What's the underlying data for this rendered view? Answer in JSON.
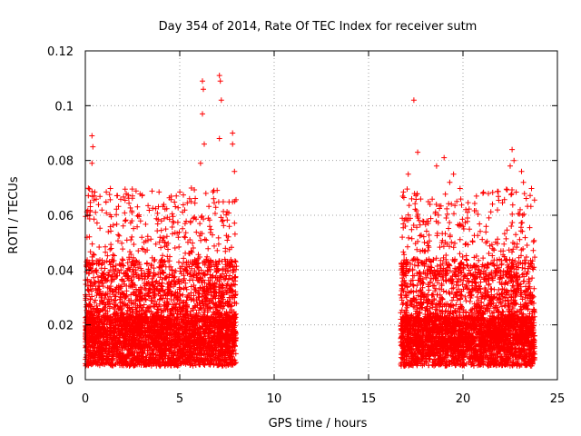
{
  "chart_data": {
    "type": "scatter",
    "title": "Day 354 of 2014, Rate Of TEC Index for receiver sutm",
    "xlabel": "GPS time / hours",
    "ylabel": "ROTI / TECUs",
    "xlim": [
      0,
      25
    ],
    "ylim": [
      0,
      0.12
    ],
    "xticks": [
      0,
      5,
      10,
      15,
      20,
      25
    ],
    "xtick_labels": [
      "0",
      "5",
      "10",
      "15",
      "20",
      "25"
    ],
    "yticks": [
      0,
      0.02,
      0.04,
      0.06,
      0.08,
      0.1,
      0.12
    ],
    "ytick_labels": [
      "0",
      "0.02",
      "0.04",
      "0.06",
      "0.08",
      "0.1",
      "0.12"
    ],
    "grid": true,
    "marker": "+",
    "series": [
      {
        "name": "ROTI",
        "color": "#ff0000",
        "segments": [
          {
            "x_range": [
              0.0,
              8.0
            ],
            "y_range": [
              0.002,
              0.07
            ]
          },
          {
            "x_range": [
              16.7,
              23.8
            ],
            "y_range": [
              0.002,
              0.07
            ]
          }
        ],
        "highlights": [
          {
            "x": 0.35,
            "y": 0.089
          },
          {
            "x": 0.4,
            "y": 0.085
          },
          {
            "x": 0.35,
            "y": 0.079
          },
          {
            "x": 6.2,
            "y": 0.109
          },
          {
            "x": 6.25,
            "y": 0.106
          },
          {
            "x": 6.2,
            "y": 0.097
          },
          {
            "x": 7.1,
            "y": 0.111
          },
          {
            "x": 7.15,
            "y": 0.109
          },
          {
            "x": 7.2,
            "y": 0.102
          },
          {
            "x": 7.1,
            "y": 0.088
          },
          {
            "x": 7.8,
            "y": 0.09
          },
          {
            "x": 7.8,
            "y": 0.086
          },
          {
            "x": 6.3,
            "y": 0.086
          },
          {
            "x": 6.1,
            "y": 0.079
          },
          {
            "x": 7.9,
            "y": 0.076
          },
          {
            "x": 17.4,
            "y": 0.102
          },
          {
            "x": 17.6,
            "y": 0.083
          },
          {
            "x": 17.1,
            "y": 0.075
          },
          {
            "x": 18.6,
            "y": 0.078
          },
          {
            "x": 19.0,
            "y": 0.081
          },
          {
            "x": 19.5,
            "y": 0.075
          },
          {
            "x": 19.3,
            "y": 0.072
          },
          {
            "x": 22.6,
            "y": 0.084
          },
          {
            "x": 22.7,
            "y": 0.08
          },
          {
            "x": 23.1,
            "y": 0.076
          },
          {
            "x": 23.2,
            "y": 0.072
          },
          {
            "x": 22.5,
            "y": 0.078
          }
        ]
      }
    ]
  }
}
